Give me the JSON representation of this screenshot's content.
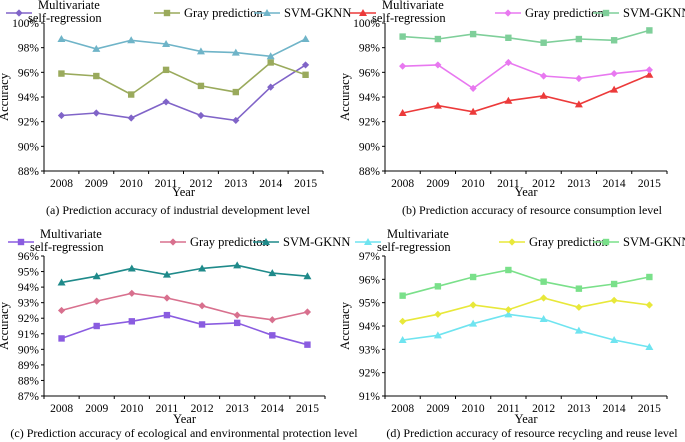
{
  "chart_data": [
    {
      "type": "line",
      "title": "(a) Prediction accuracy of industrial development level",
      "xlabel": "Year",
      "ylabel": "Accuracy",
      "categories": [
        "2008",
        "2009",
        "2010",
        "2011",
        "2012",
        "2013",
        "2014",
        "2015"
      ],
      "ylim": [
        88,
        100
      ],
      "ytick_values": [
        88,
        90,
        92,
        94,
        96,
        98,
        100
      ],
      "ytick_labels": [
        "88%",
        "90%",
        "92%",
        "94%",
        "96%",
        "98%",
        "100%"
      ],
      "legend": [
        {
          "lines": [
            "Multivariate",
            "self-regression"
          ],
          "color": "#8064c8",
          "marker": "diamond"
        },
        {
          "lines": [
            "Gray prediction"
          ],
          "color": "#9aaa5c",
          "marker": "square"
        },
        {
          "lines": [
            "SVM-GKNN"
          ],
          "color": "#6fb4c8",
          "marker": "triangle"
        }
      ],
      "series": [
        {
          "name": "Multivariate self-regression",
          "color": "#8064c8",
          "marker": "diamond",
          "values": [
            92.5,
            92.7,
            92.3,
            93.6,
            92.5,
            92.1,
            94.8,
            96.6
          ]
        },
        {
          "name": "Gray prediction",
          "color": "#9aaa5c",
          "marker": "square",
          "values": [
            95.9,
            95.7,
            94.2,
            96.2,
            94.9,
            94.4,
            96.8,
            95.8
          ]
        },
        {
          "name": "SVM-GKNN",
          "color": "#6fb4c8",
          "marker": "triangle",
          "values": [
            98.7,
            97.9,
            98.6,
            98.3,
            97.7,
            97.6,
            97.3,
            98.7
          ]
        }
      ]
    },
    {
      "type": "line",
      "title": "(b) Prediction accuracy of resource consumption level",
      "xlabel": "Year",
      "ylabel": "Accuracy",
      "categories": [
        "2008",
        "2009",
        "2010",
        "2011",
        "2012",
        "2013",
        "2014",
        "2015"
      ],
      "ylim": [
        88,
        100
      ],
      "ytick_values": [
        88,
        90,
        92,
        94,
        96,
        98,
        100
      ],
      "ytick_labels": [
        "88%",
        "90%",
        "92%",
        "94%",
        "96%",
        "98%",
        "100%"
      ],
      "legend": [
        {
          "lines": [
            "Multivariate",
            "self-regression"
          ],
          "color": "#ec3a3a",
          "marker": "triangle"
        },
        {
          "lines": [
            "Gray prediction"
          ],
          "color": "#e878f0",
          "marker": "diamond"
        },
        {
          "lines": [
            "SVM-GKNN"
          ],
          "color": "#7fcf9a",
          "marker": "square"
        }
      ],
      "series": [
        {
          "name": "Multivariate self-regression",
          "color": "#ec3a3a",
          "marker": "triangle",
          "values": [
            92.7,
            93.3,
            92.8,
            93.7,
            94.1,
            93.4,
            94.6,
            95.8
          ]
        },
        {
          "name": "Gray prediction",
          "color": "#e878f0",
          "marker": "diamond",
          "values": [
            96.5,
            96.6,
            94.7,
            96.8,
            95.7,
            95.5,
            95.9,
            96.2
          ]
        },
        {
          "name": "SVM-GKNN",
          "color": "#7fcf9a",
          "marker": "square",
          "values": [
            98.9,
            98.7,
            99.1,
            98.8,
            98.4,
            98.7,
            98.6,
            99.4
          ]
        }
      ]
    },
    {
      "type": "line",
      "title": "(c) Prediction accuracy of ecological and environmental protection level",
      "xlabel": "Year",
      "ylabel": "Accuracy",
      "categories": [
        "2008",
        "2009",
        "2010",
        "2011",
        "2012",
        "2013",
        "2014",
        "2015"
      ],
      "ylim": [
        87,
        96
      ],
      "ytick_values": [
        87,
        88,
        89,
        90,
        91,
        92,
        93,
        94,
        95,
        96
      ],
      "ytick_labels": [
        "87%",
        "88%",
        "89%",
        "90%",
        "91%",
        "92%",
        "93%",
        "94%",
        "95%",
        "96%"
      ],
      "legend": [
        {
          "lines": [
            "Multivariate",
            "self-regression"
          ],
          "color": "#8a5ce0",
          "marker": "square"
        },
        {
          "lines": [
            "Gray prediction"
          ],
          "color": "#d8708e",
          "marker": "diamond"
        },
        {
          "lines": [
            "SVM-GKNN"
          ],
          "color": "#1f8a8a",
          "marker": "triangle"
        }
      ],
      "series": [
        {
          "name": "Multivariate self-regression",
          "color": "#8a5ce0",
          "marker": "square",
          "values": [
            90.7,
            91.5,
            91.8,
            92.2,
            91.6,
            91.7,
            90.9,
            90.3
          ]
        },
        {
          "name": "Gray prediction",
          "color": "#d8708e",
          "marker": "diamond",
          "values": [
            92.5,
            93.1,
            93.6,
            93.3,
            92.8,
            92.2,
            91.9,
            92.4
          ]
        },
        {
          "name": "SVM-GKNN",
          "color": "#1f8a8a",
          "marker": "triangle",
          "values": [
            94.3,
            94.7,
            95.2,
            94.8,
            95.2,
            95.4,
            94.9,
            94.7
          ]
        }
      ]
    },
    {
      "type": "line",
      "title": "(d) Prediction accuracy of resource recycling and reuse level",
      "xlabel": "Year",
      "ylabel": "Accuracy",
      "categories": [
        "2008",
        "2009",
        "2010",
        "2011",
        "2012",
        "2013",
        "2014",
        "2015"
      ],
      "ylim": [
        91,
        97
      ],
      "ytick_values": [
        91,
        92,
        93,
        94,
        95,
        96,
        97
      ],
      "ytick_labels": [
        "91%",
        "92%",
        "93%",
        "94%",
        "95%",
        "96%",
        "97%"
      ],
      "legend": [
        {
          "lines": [
            "Multivariate",
            "self-regression"
          ],
          "color": "#6fe4f0",
          "marker": "triangle"
        },
        {
          "lines": [
            "Gray prediction"
          ],
          "color": "#e8e83a",
          "marker": "diamond"
        },
        {
          "lines": [
            "SVM-GKNN"
          ],
          "color": "#7ae08a",
          "marker": "square"
        }
      ],
      "series": [
        {
          "name": "Multivariate self-regression",
          "color": "#6fe4f0",
          "marker": "triangle",
          "values": [
            93.4,
            93.6,
            94.1,
            94.5,
            94.3,
            93.8,
            93.4,
            93.1
          ]
        },
        {
          "name": "Gray prediction",
          "color": "#e8e83a",
          "marker": "diamond",
          "values": [
            94.2,
            94.5,
            94.9,
            94.7,
            95.2,
            94.8,
            95.1,
            94.9
          ]
        },
        {
          "name": "SVM-GKNN",
          "color": "#7ae08a",
          "marker": "square",
          "values": [
            95.3,
            95.7,
            96.1,
            96.4,
            95.9,
            95.6,
            95.8,
            96.1
          ]
        }
      ]
    }
  ]
}
